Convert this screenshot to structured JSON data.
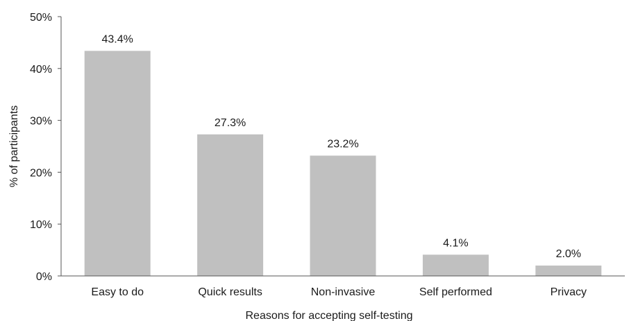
{
  "chart_data": {
    "type": "bar",
    "categories": [
      "Easy to do",
      "Quick results",
      "Non-invasive",
      "Self performed",
      "Privacy"
    ],
    "values": [
      43.4,
      27.3,
      23.2,
      4.1,
      2.0
    ],
    "data_labels": [
      "43.4%",
      "27.3%",
      "23.2%",
      "4.1%",
      "2.0%"
    ],
    "xlabel": "Reasons for accepting self-testing",
    "ylabel": "% of participants",
    "ylim": [
      0,
      50
    ],
    "yticks": [
      0,
      10,
      20,
      30,
      40,
      50
    ],
    "ytick_labels": [
      "0%",
      "10%",
      "20%",
      "30%",
      "40%",
      "50%"
    ],
    "grid": false,
    "bar_color": "#c0c0c0",
    "axis_color": "#555555"
  }
}
